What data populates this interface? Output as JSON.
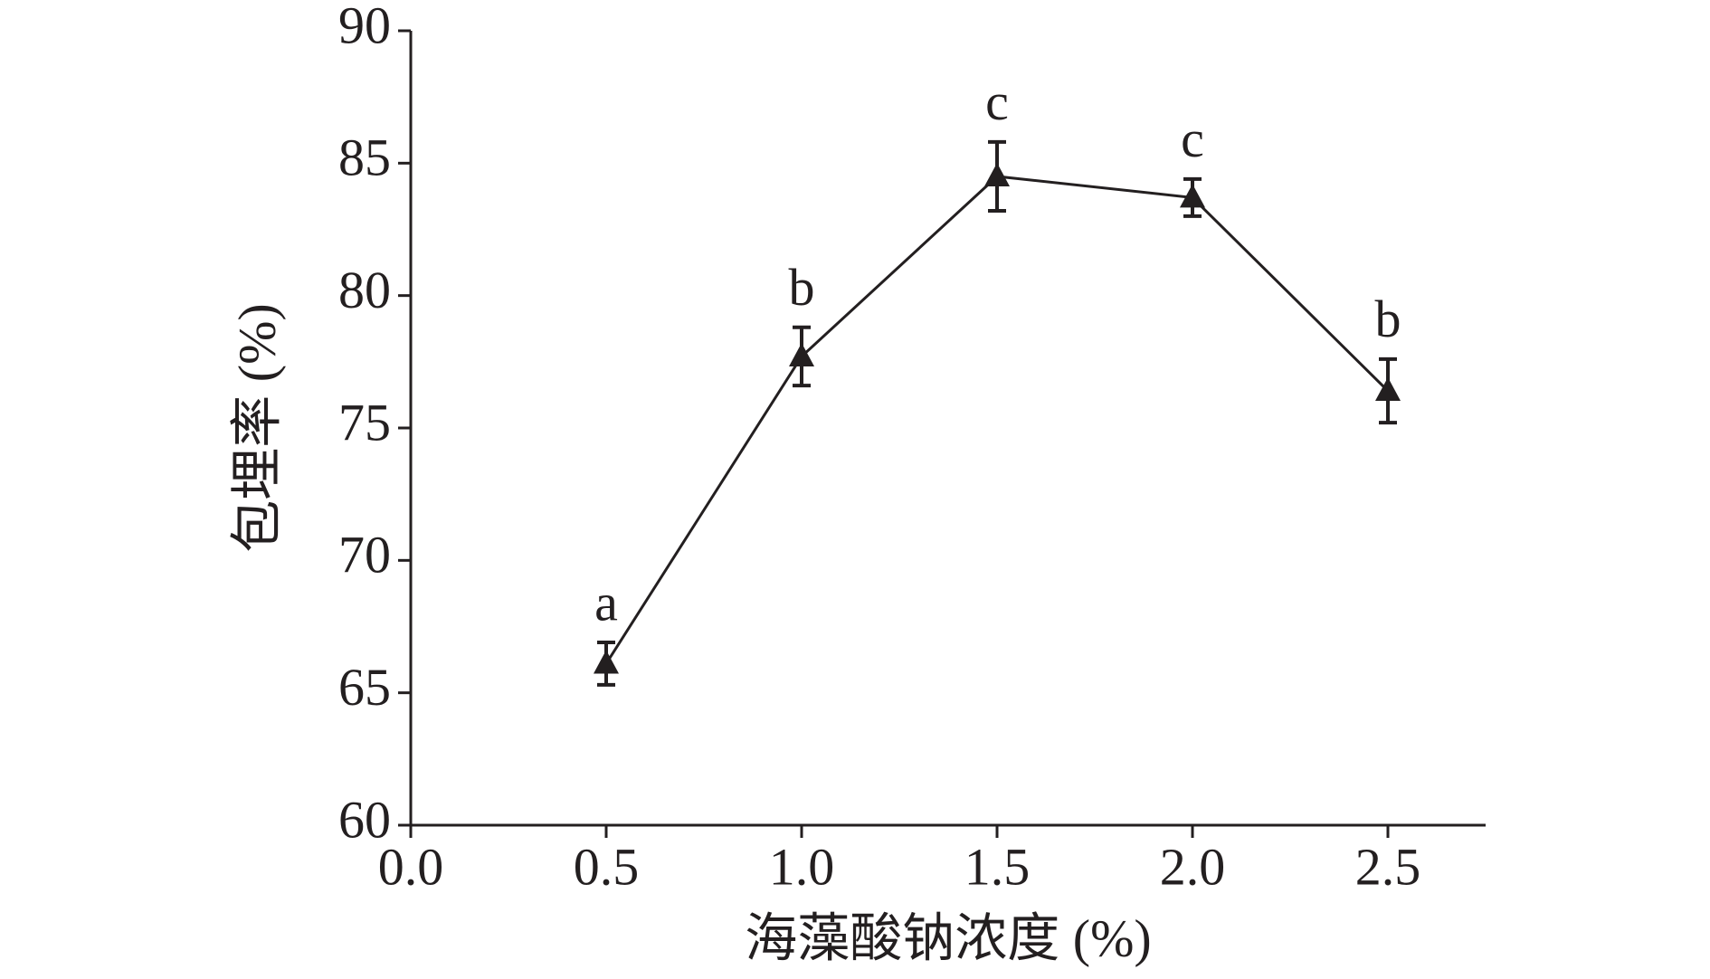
{
  "chart_data": {
    "type": "line",
    "x_label": "海藻酸钠浓度 (%)",
    "y_label": "包埋率 (%)",
    "x": [
      0.5,
      1.0,
      1.5,
      2.0,
      2.5
    ],
    "series": [
      {
        "color": "#231f20",
        "values": [
          66.1,
          77.7,
          84.5,
          83.7,
          76.4
        ],
        "errors": [
          0.8,
          1.1,
          1.3,
          0.7,
          1.2
        ],
        "labels": [
          "a",
          "b",
          "c",
          "c",
          "b"
        ]
      }
    ],
    "xlim": [
      0,
      2.75
    ],
    "xticks": [
      {
        "value": 0,
        "label": "0.0"
      },
      0.5,
      {
        "value": 1,
        "label": "1.0"
      },
      1.5,
      {
        "value": 2,
        "label": "2.0"
      },
      2.5
    ],
    "ylim": [
      60,
      90
    ],
    "yticks": [
      60,
      65,
      70,
      75,
      80,
      85,
      90
    ]
  }
}
